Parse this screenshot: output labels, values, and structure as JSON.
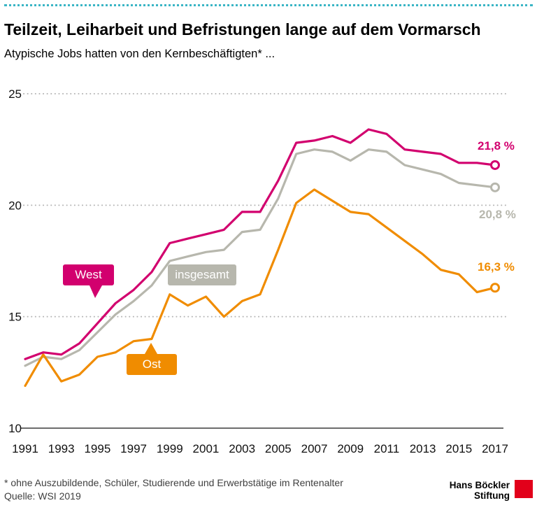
{
  "colors": {
    "top_rule": "#3ab5c5",
    "grid": "#b4b4b4",
    "axis": "#3d3d3d",
    "logo_red": "#e2001a"
  },
  "chart_data": {
    "type": "line",
    "title": "Teilzeit, Leiharbeit und Befristungen lange auf dem Vormarsch",
    "subtitle": "Atypische Jobs hatten von den Kernbeschäftigten* ...",
    "x": [
      1991,
      1992,
      1993,
      1994,
      1995,
      1996,
      1997,
      1998,
      1999,
      2000,
      2001,
      2002,
      2003,
      2004,
      2005,
      2006,
      2007,
      2008,
      2009,
      2010,
      2011,
      2012,
      2013,
      2014,
      2015,
      2016,
      2017
    ],
    "x_tick_labels": [
      "1991",
      "1993",
      "1995",
      "1997",
      "1999",
      "2001",
      "2003",
      "2005",
      "2007",
      "2009",
      "2011",
      "2013",
      "2015",
      "2017"
    ],
    "y_ticks": [
      10,
      15,
      20,
      25
    ],
    "ylim": [
      10,
      25
    ],
    "grid": "horizontal-dotted",
    "legend_position": "inline-callouts",
    "series": [
      {
        "name": "West",
        "color": "#d2006e",
        "end_label": "21,8 %",
        "values": [
          13.1,
          13.4,
          13.3,
          13.8,
          14.7,
          15.6,
          16.2,
          17.0,
          18.3,
          18.5,
          18.7,
          18.9,
          19.7,
          19.7,
          21.1,
          22.8,
          22.9,
          23.1,
          22.8,
          23.4,
          23.2,
          22.5,
          22.4,
          22.3,
          21.9,
          21.9,
          21.8
        ]
      },
      {
        "name": "insgesamt",
        "color": "#b7b7ad",
        "end_label": "20,8 %",
        "values": [
          12.8,
          13.2,
          13.1,
          13.5,
          14.3,
          15.1,
          15.7,
          16.4,
          17.5,
          17.7,
          17.9,
          18.0,
          18.8,
          18.9,
          20.3,
          22.3,
          22.5,
          22.4,
          22.0,
          22.5,
          22.4,
          21.8,
          21.6,
          21.4,
          21.0,
          20.9,
          20.8
        ]
      },
      {
        "name": "Ost",
        "color": "#f08c00",
        "end_label": "16,3 %",
        "values": [
          11.9,
          13.3,
          12.1,
          12.4,
          13.2,
          13.4,
          13.9,
          14.0,
          16.0,
          15.5,
          15.9,
          15.0,
          15.7,
          16.0,
          18.0,
          20.1,
          20.7,
          20.2,
          19.7,
          19.6,
          19.0,
          18.4,
          17.8,
          17.1,
          16.9,
          16.1,
          16.3
        ]
      }
    ]
  },
  "footer": {
    "footnote": "* ohne Auszubildende, Schüler, Studierende und Erwerbstätige im Rentenalter",
    "source": "Quelle: WSI 2019",
    "logo": {
      "line1": "Hans Böckler",
      "line2": "Stiftung"
    }
  }
}
